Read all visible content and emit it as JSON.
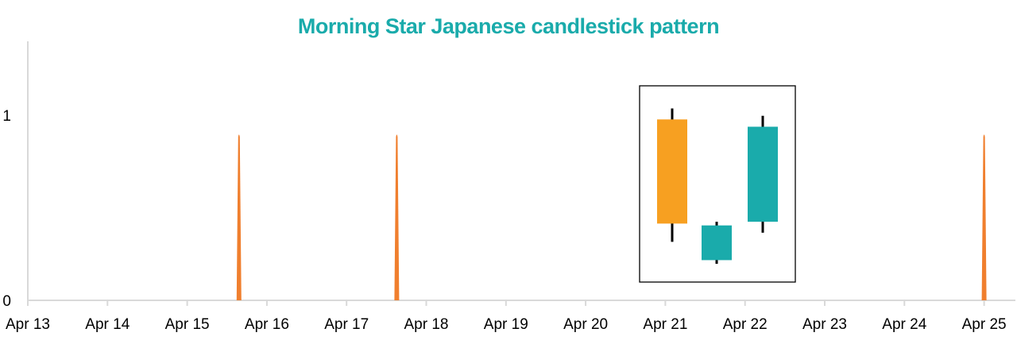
{
  "colors": {
    "title": "#1aabab",
    "spike": "#f07f2e",
    "bearish": "#f7a021",
    "bullish": "#1aabab",
    "axis": "#d9d9d9",
    "wick": "#000000"
  },
  "chart_data": {
    "type": "area",
    "title": "Morning Star Japanese candlestick pattern",
    "xlabel": "",
    "ylabel": "",
    "x_ticks": [
      "Apr 13",
      "Apr 14",
      "Apr 15",
      "Apr 16",
      "Apr 17",
      "Apr 18",
      "Apr 19",
      "Apr 20",
      "Apr 21",
      "Apr 22",
      "Apr 23",
      "Apr 24",
      "Apr 25"
    ],
    "y_ticks": [
      "0",
      "1"
    ],
    "ylim": [
      0,
      1.4
    ],
    "grid": false,
    "legend": "none",
    "series": [
      {
        "values": [
          {
            "date": "Apr 15.65",
            "y": 0.9
          },
          {
            "date": "Apr 17.63",
            "y": 0.9
          },
          {
            "date": "Apr 25.0",
            "y": 0.9
          }
        ]
      }
    ],
    "inset": {
      "type": "candlestick",
      "candles": [
        {
          "color": "bearish",
          "open": 0.99,
          "close": 0.42,
          "high": 1.05,
          "low": 0.32
        },
        {
          "color": "bullish",
          "open": 0.22,
          "close": 0.41,
          "high": 0.43,
          "low": 0.2
        },
        {
          "color": "bullish",
          "open": 0.43,
          "close": 0.95,
          "high": 1.01,
          "low": 0.37
        }
      ]
    }
  }
}
